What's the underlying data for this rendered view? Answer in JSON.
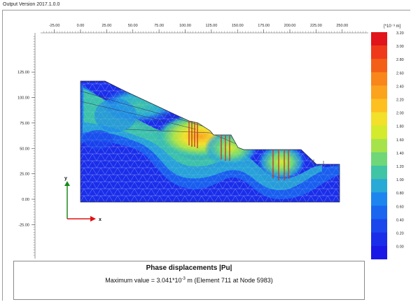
{
  "window": {
    "version_label": "Output Version 2017.1.0.0"
  },
  "axes": {
    "x_ticks": [
      "-25.00",
      "0.00",
      "25.00",
      "50.00",
      "75.00",
      "100.00",
      "125.00",
      "150.00",
      "175.00",
      "200.00",
      "225.00",
      "250.00"
    ],
    "y_ticks": [
      "125.00",
      "100.00",
      "75.00",
      "50.00",
      "25.00",
      "0.00",
      "-25.00"
    ],
    "x_axis_label": "x",
    "y_axis_label": "y"
  },
  "legend": {
    "unit_label": "[*10⁻³ m]",
    "values": [
      "3.20",
      "3.00",
      "2.80",
      "2.60",
      "2.40",
      "2.20",
      "2.00",
      "1.80",
      "1.60",
      "1.40",
      "1.20",
      "1.00",
      "0.80",
      "0.60",
      "0.40",
      "0.20",
      "0.00"
    ],
    "colors": [
      "#e0141a",
      "#ee3a1a",
      "#f45f18",
      "#f9861a",
      "#fba31c",
      "#fdc020",
      "#f2e02a",
      "#d4ea2c",
      "#a6e34a",
      "#6fd778",
      "#3fc4a6",
      "#29a9d6",
      "#1c86ee",
      "#1a66ef",
      "#1a48ec",
      "#1a2eea",
      "#1a18e6"
    ]
  },
  "info": {
    "title": "Phase displacements |Pu|",
    "max_prefix": "Maximum value = 3.041*10",
    "max_exponent": "-3",
    "max_suffix": " m (Element 711 at Node 5983)"
  }
}
